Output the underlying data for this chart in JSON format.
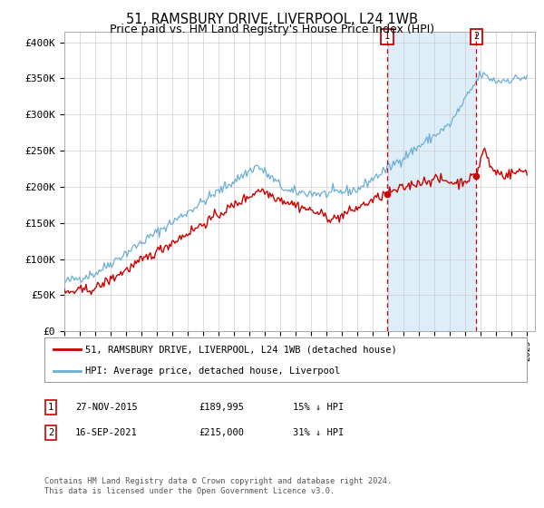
{
  "title": "51, RAMSBURY DRIVE, LIVERPOOL, L24 1WB",
  "subtitle": "Price paid vs. HM Land Registry's House Price Index (HPI)",
  "ylabel_ticks": [
    "£0",
    "£50K",
    "£100K",
    "£150K",
    "£200K",
    "£250K",
    "£300K",
    "£350K",
    "£400K"
  ],
  "ytick_vals": [
    0,
    50000,
    100000,
    150000,
    200000,
    250000,
    300000,
    350000,
    400000
  ],
  "ylim": [
    0,
    415000
  ],
  "xlim_start": 1995.0,
  "xlim_end": 2025.5,
  "hpi_color": "#6baed6",
  "hpi_fill_color": "#ddeef8",
  "property_color": "#cc0000",
  "marker1_x": 2015.92,
  "marker1_y": 189995,
  "marker1_label": "1",
  "marker2_x": 2021.71,
  "marker2_y": 215000,
  "marker2_label": "2",
  "legend_line1": "51, RAMSBURY DRIVE, LIVERPOOL, L24 1WB (detached house)",
  "legend_line2": "HPI: Average price, detached house, Liverpool",
  "table_row1_num": "1",
  "table_row1_date": "27-NOV-2015",
  "table_row1_price": "£189,995",
  "table_row1_hpi": "15% ↓ HPI",
  "table_row2_num": "2",
  "table_row2_date": "16-SEP-2021",
  "table_row2_price": "£215,000",
  "table_row2_hpi": "31% ↓ HPI",
  "footnote": "Contains HM Land Registry data © Crown copyright and database right 2024.\nThis data is licensed under the Open Government Licence v3.0.",
  "bg_color": "#ffffff",
  "grid_color": "#cccccc"
}
